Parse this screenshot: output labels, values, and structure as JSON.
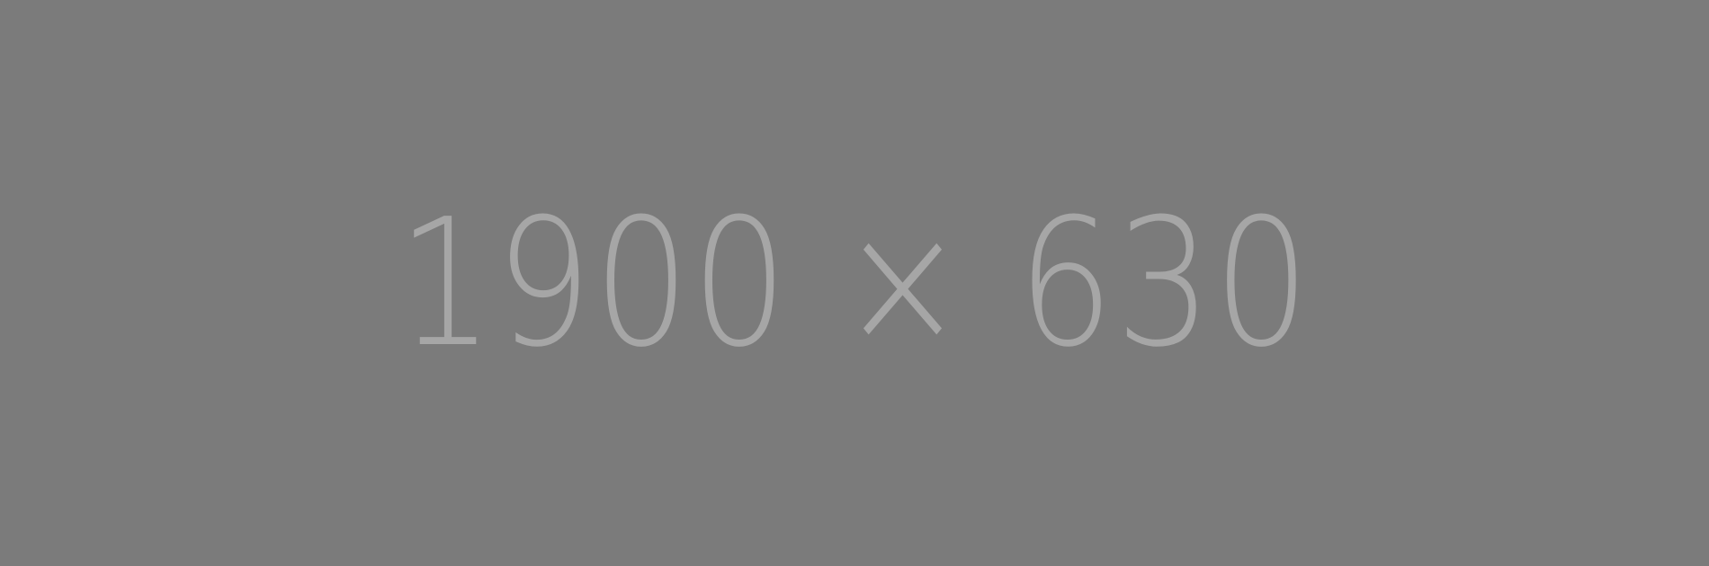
{
  "placeholder": {
    "label": "1900 × 630",
    "background_color": "#7b7b7b",
    "text_color": "#a6a6a6"
  }
}
